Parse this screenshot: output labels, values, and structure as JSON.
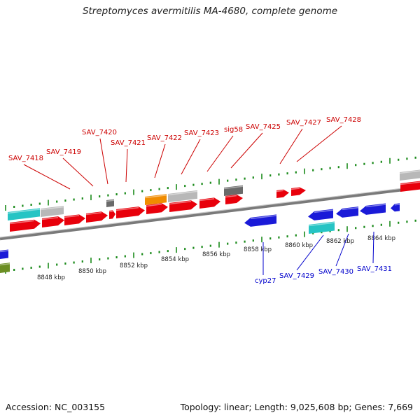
{
  "title": "Streptomyces avermitilis MA-4680, complete genome",
  "footer": {
    "accession": "Accession: NC_003155",
    "stats": "Topology: linear; Length: 9,025,608 bp; Genes: 7,669"
  },
  "colors": {
    "red": "#e8000b",
    "blue": "#1a1ad8",
    "cyan": "#26c4c4",
    "gray": "#b8b8b8",
    "darkgray": "#6a6a6a",
    "orange": "#f08c00",
    "olive": "#6b8e23",
    "tick": "#1a8a1a",
    "label_upper": "#cc0000",
    "label_lower": "#0000cc"
  },
  "ruler_labels": [
    "8848 kbp",
    "8850 kbp",
    "8852 kbp",
    "8854 kbp",
    "8856 kbp",
    "8858 kbp",
    "8860 kbp",
    "8862 kbp",
    "8864 kbp"
  ],
  "upper_gene_labels": [
    "SAV_7418",
    "SAV_7419",
    "SAV_7420",
    "SAV_7421",
    "SAV_7422",
    "SAV_7423",
    "sig58",
    "SAV_7425",
    "SAV_7427",
    "SAV_7428"
  ],
  "lower_gene_labels": [
    "cyp27",
    "SAV_7429",
    "SAV_7430",
    "SAV_7431"
  ]
}
